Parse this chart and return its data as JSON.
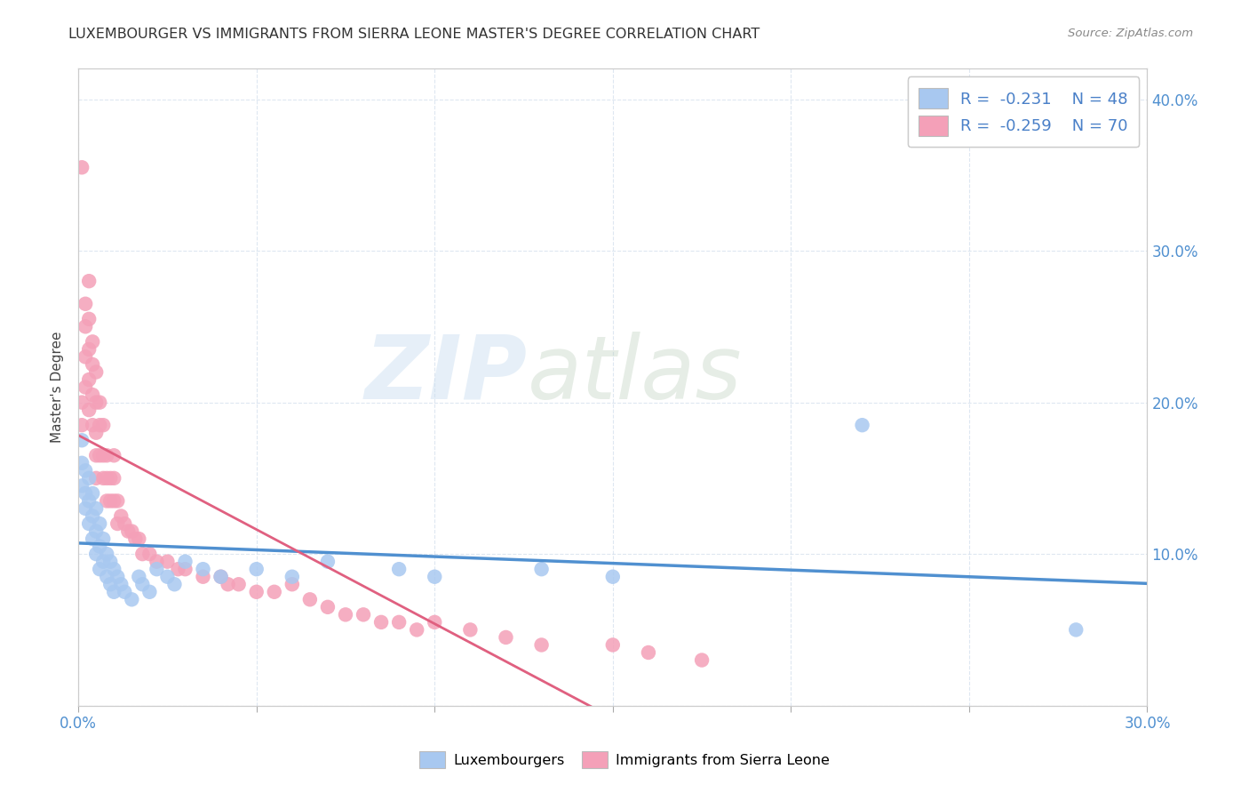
{
  "title": "LUXEMBOURGER VS IMMIGRANTS FROM SIERRA LEONE MASTER'S DEGREE CORRELATION CHART",
  "source": "Source: ZipAtlas.com",
  "ylabel": "Master's Degree",
  "xlim": [
    0.0,
    0.3
  ],
  "ylim": [
    0.0,
    0.42
  ],
  "x_ticks": [
    0.0,
    0.05,
    0.1,
    0.15,
    0.2,
    0.25,
    0.3
  ],
  "x_tick_labels": [
    "0.0%",
    "",
    "",
    "",
    "",
    "",
    "30.0%"
  ],
  "y_ticks": [
    0.0,
    0.1,
    0.2,
    0.3,
    0.4
  ],
  "y_right_labels": [
    "",
    "10.0%",
    "20.0%",
    "30.0%",
    "40.0%"
  ],
  "legend_r1": "-0.231",
  "legend_n1": "48",
  "legend_r2": "-0.259",
  "legend_n2": "70",
  "blue_color": "#a8c8f0",
  "pink_color": "#f4a0b8",
  "blue_line_color": "#5090d0",
  "pink_line_color": "#e06080",
  "lux_x": [
    0.001,
    0.001,
    0.001,
    0.002,
    0.002,
    0.002,
    0.003,
    0.003,
    0.003,
    0.004,
    0.004,
    0.004,
    0.005,
    0.005,
    0.005,
    0.006,
    0.006,
    0.006,
    0.007,
    0.007,
    0.008,
    0.008,
    0.009,
    0.009,
    0.01,
    0.01,
    0.011,
    0.012,
    0.013,
    0.015,
    0.017,
    0.018,
    0.02,
    0.022,
    0.025,
    0.027,
    0.03,
    0.035,
    0.04,
    0.05,
    0.06,
    0.07,
    0.09,
    0.1,
    0.13,
    0.15,
    0.22,
    0.28
  ],
  "lux_y": [
    0.175,
    0.16,
    0.145,
    0.155,
    0.14,
    0.13,
    0.15,
    0.135,
    0.12,
    0.14,
    0.125,
    0.11,
    0.13,
    0.115,
    0.1,
    0.12,
    0.105,
    0.09,
    0.11,
    0.095,
    0.1,
    0.085,
    0.095,
    0.08,
    0.09,
    0.075,
    0.085,
    0.08,
    0.075,
    0.07,
    0.085,
    0.08,
    0.075,
    0.09,
    0.085,
    0.08,
    0.095,
    0.09,
    0.085,
    0.09,
    0.085,
    0.095,
    0.09,
    0.085,
    0.09,
    0.085,
    0.185,
    0.05
  ],
  "sl_x": [
    0.001,
    0.001,
    0.001,
    0.002,
    0.002,
    0.002,
    0.002,
    0.003,
    0.003,
    0.003,
    0.003,
    0.003,
    0.004,
    0.004,
    0.004,
    0.004,
    0.005,
    0.005,
    0.005,
    0.005,
    0.005,
    0.006,
    0.006,
    0.006,
    0.007,
    0.007,
    0.007,
    0.008,
    0.008,
    0.008,
    0.009,
    0.009,
    0.01,
    0.01,
    0.01,
    0.011,
    0.011,
    0.012,
    0.013,
    0.014,
    0.015,
    0.016,
    0.017,
    0.018,
    0.02,
    0.022,
    0.025,
    0.028,
    0.03,
    0.035,
    0.04,
    0.042,
    0.045,
    0.05,
    0.055,
    0.06,
    0.065,
    0.07,
    0.075,
    0.08,
    0.085,
    0.09,
    0.095,
    0.1,
    0.11,
    0.12,
    0.13,
    0.15,
    0.16,
    0.175
  ],
  "sl_y": [
    0.355,
    0.2,
    0.185,
    0.265,
    0.25,
    0.23,
    0.21,
    0.28,
    0.255,
    0.235,
    0.215,
    0.195,
    0.24,
    0.225,
    0.205,
    0.185,
    0.22,
    0.2,
    0.18,
    0.165,
    0.15,
    0.2,
    0.185,
    0.165,
    0.185,
    0.165,
    0.15,
    0.165,
    0.15,
    0.135,
    0.15,
    0.135,
    0.165,
    0.15,
    0.135,
    0.135,
    0.12,
    0.125,
    0.12,
    0.115,
    0.115,
    0.11,
    0.11,
    0.1,
    0.1,
    0.095,
    0.095,
    0.09,
    0.09,
    0.085,
    0.085,
    0.08,
    0.08,
    0.075,
    0.075,
    0.08,
    0.07,
    0.065,
    0.06,
    0.06,
    0.055,
    0.055,
    0.05,
    0.055,
    0.05,
    0.045,
    0.04,
    0.04,
    0.035,
    0.03
  ]
}
